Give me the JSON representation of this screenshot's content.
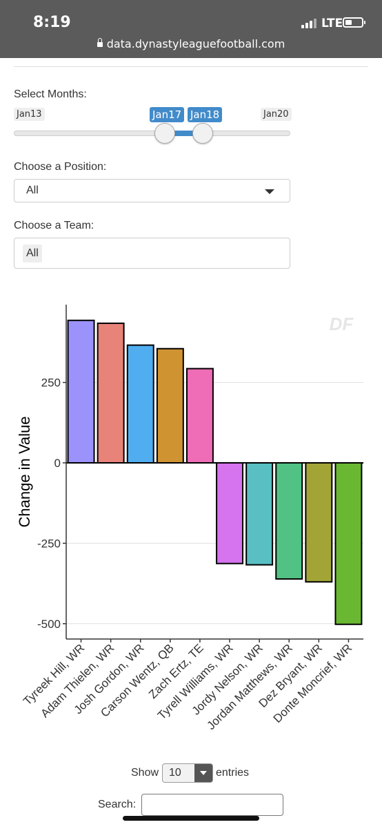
{
  "status_bar": {
    "time": "8:19",
    "network": "LTE"
  },
  "browser": {
    "url": "data.dynastyleaguefootball.com"
  },
  "filters": {
    "months_label": "Select Months:",
    "slider": {
      "min_label": "Jan13",
      "max_label": "Jan20",
      "from_label": "Jan17",
      "to_label": "Jan18"
    },
    "position_label": "Choose a Position:",
    "position_value": "All",
    "team_label": "Choose a Team:",
    "team_value": "All"
  },
  "watermark": "DF",
  "chart_data": {
    "type": "bar",
    "categories": [
      "Tyreek Hill, WR",
      "Adam Thielen, WR",
      "Josh Gordon, WR",
      "Carson Wentz, QB",
      "Zach Ertz, TE",
      "Tyrell Williams, WR",
      "Jordy Nelson, WR",
      "Jordan Matthews, WR",
      "Dez Bryant, WR",
      "Donte Moncrief, WR"
    ],
    "values": [
      443,
      434,
      366,
      355,
      293,
      -313,
      -317,
      -361,
      -370,
      -502
    ],
    "colors": [
      "#9b93fb",
      "#e8837a",
      "#50aef0",
      "#cf9431",
      "#ee6db6",
      "#d574ee",
      "#59bfc3",
      "#52c284",
      "#a2a536",
      "#6ab832"
    ],
    "ylabel": "Change in Value",
    "yticks": [
      250,
      0,
      -250,
      -500
    ],
    "ylim": [
      -535,
      490
    ],
    "grid": true
  },
  "table_controls": {
    "show_label": "Show",
    "length_value": "10",
    "entries_label": "entries",
    "search_label": "Search:"
  }
}
